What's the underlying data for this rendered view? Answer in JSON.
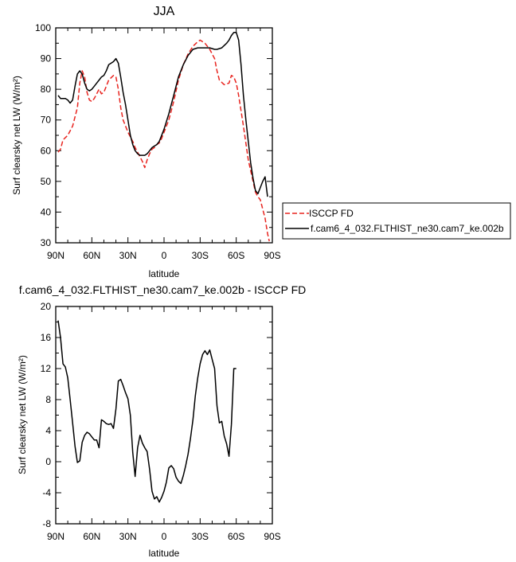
{
  "page": {
    "title": "JJA"
  },
  "chart_data": [
    {
      "type": "line",
      "title": "JJA",
      "xlabel": "latitude",
      "ylabel": "Surf clearsky net LW (W/m²)",
      "xlim": [
        90,
        -90
      ],
      "ylim": [
        30,
        100
      ],
      "x_ticks": [
        90,
        60,
        30,
        0,
        -30,
        -60,
        -90
      ],
      "x_tick_labels": [
        "90N",
        "60N",
        "30N",
        "0",
        "30S",
        "60S",
        "90S"
      ],
      "y_ticks": [
        30,
        40,
        50,
        60,
        70,
        80,
        90,
        100
      ],
      "y_tick_labels": [
        "30",
        "40",
        "50",
        "60",
        "70",
        "80",
        "90",
        "100"
      ],
      "legend_position": "right",
      "series": [
        {
          "name": "ISCCP FD",
          "color": "#e8241f",
          "dash": "dashed",
          "points": [
            [
              88,
              59.5
            ],
            [
              86,
              60.5
            ],
            [
              84,
              63.5
            ],
            [
              80,
              65
            ],
            [
              76,
              68
            ],
            [
              72,
              74
            ],
            [
              70,
              82
            ],
            [
              68,
              86
            ],
            [
              66,
              84
            ],
            [
              64,
              79
            ],
            [
              62,
              76.5
            ],
            [
              60,
              76
            ],
            [
              58,
              77
            ],
            [
              56,
              78.5
            ],
            [
              54,
              80
            ],
            [
              52,
              78.5
            ],
            [
              50,
              79
            ],
            [
              48,
              81
            ],
            [
              46,
              83
            ],
            [
              42,
              84.5
            ],
            [
              40,
              84
            ],
            [
              38,
              80
            ],
            [
              36,
              74
            ],
            [
              34,
              70
            ],
            [
              30,
              66
            ],
            [
              26,
              63
            ],
            [
              24,
              61
            ],
            [
              20,
              58
            ],
            [
              18,
              56.5
            ],
            [
              16,
              54.5
            ],
            [
              14,
              57
            ],
            [
              12,
              59
            ],
            [
              10,
              60.5
            ],
            [
              8,
              61
            ],
            [
              6,
              62
            ],
            [
              4,
              62.5
            ],
            [
              2,
              64
            ],
            [
              0,
              66
            ],
            [
              -2,
              68
            ],
            [
              -4,
              70
            ],
            [
              -8,
              76
            ],
            [
              -12,
              83
            ],
            [
              -16,
              88
            ],
            [
              -20,
              91.5
            ],
            [
              -24,
              94
            ],
            [
              -28,
              95.5
            ],
            [
              -30,
              96
            ],
            [
              -34,
              95
            ],
            [
              -38,
              93
            ],
            [
              -42,
              90
            ],
            [
              -44,
              86
            ],
            [
              -46,
              83
            ],
            [
              -50,
              81.5
            ],
            [
              -54,
              82
            ],
            [
              -56,
              84.5
            ],
            [
              -58,
              84
            ],
            [
              -60,
              82
            ],
            [
              -62,
              78
            ],
            [
              -66,
              68
            ],
            [
              -70,
              57
            ],
            [
              -74,
              50
            ],
            [
              -76,
              46.5
            ],
            [
              -78,
              45
            ],
            [
              -80,
              44
            ],
            [
              -82,
              41
            ],
            [
              -84,
              38
            ],
            [
              -86,
              33
            ],
            [
              -87.5,
              30.5
            ]
          ]
        },
        {
          "name": "f.cam6_4_032.FLTHIST_ne30.cam7_ke.002b",
          "color": "#000000",
          "dash": "solid",
          "points": [
            [
              88,
              78
            ],
            [
              86,
              77
            ],
            [
              84,
              77
            ],
            [
              82,
              77
            ],
            [
              80,
              76.5
            ],
            [
              78,
              75.5
            ],
            [
              76,
              76.5
            ],
            [
              74,
              81
            ],
            [
              72,
              85
            ],
            [
              70,
              86
            ],
            [
              68,
              85
            ],
            [
              66,
              82
            ],
            [
              64,
              80
            ],
            [
              62,
              79.5
            ],
            [
              60,
              80
            ],
            [
              58,
              81
            ],
            [
              56,
              82
            ],
            [
              54,
              83
            ],
            [
              52,
              84
            ],
            [
              50,
              84.5
            ],
            [
              48,
              86
            ],
            [
              46,
              88
            ],
            [
              44,
              88.5
            ],
            [
              42,
              89
            ],
            [
              40,
              90
            ],
            [
              38,
              88.5
            ],
            [
              36,
              84
            ],
            [
              34,
              79
            ],
            [
              32,
              75
            ],
            [
              30,
              70
            ],
            [
              28,
              65
            ],
            [
              26,
              62
            ],
            [
              24,
              60
            ],
            [
              22,
              59
            ],
            [
              20,
              58.5
            ],
            [
              18,
              58.5
            ],
            [
              16,
              58.5
            ],
            [
              14,
              59
            ],
            [
              12,
              60
            ],
            [
              10,
              61
            ],
            [
              8,
              61.5
            ],
            [
              6,
              62
            ],
            [
              4,
              63
            ],
            [
              0,
              67
            ],
            [
              -4,
              72
            ],
            [
              -8,
              78
            ],
            [
              -12,
              84
            ],
            [
              -16,
              88
            ],
            [
              -20,
              91
            ],
            [
              -24,
              93
            ],
            [
              -28,
              93.5
            ],
            [
              -34,
              93.5
            ],
            [
              -38,
              93.5
            ],
            [
              -42,
              93
            ],
            [
              -44,
              93
            ],
            [
              -48,
              93.5
            ],
            [
              -52,
              95
            ],
            [
              -54,
              96
            ],
            [
              -56,
              97.5
            ],
            [
              -58,
              98.5
            ],
            [
              -60,
              98.5
            ],
            [
              -62,
              96
            ],
            [
              -64,
              88
            ],
            [
              -66,
              78
            ],
            [
              -68,
              70
            ],
            [
              -70,
              63
            ],
            [
              -72,
              56
            ],
            [
              -74,
              51
            ],
            [
              -76,
              47
            ],
            [
              -78,
              46
            ],
            [
              -80,
              48
            ],
            [
              -82,
              50
            ],
            [
              -84,
              51.5
            ],
            [
              -86,
              45
            ]
          ]
        }
      ]
    },
    {
      "type": "line",
      "title": "f.cam6_4_032.FLTHIST_ne30.cam7_ke.002b - ISCCP FD",
      "xlabel": "latitude",
      "ylabel": "Surf clearsky net LW (W/m²)",
      "xlim": [
        90,
        -90
      ],
      "ylim": [
        -8,
        20
      ],
      "x_ticks": [
        90,
        60,
        30,
        0,
        -30,
        -60,
        -90
      ],
      "x_tick_labels": [
        "90N",
        "60N",
        "30N",
        "0",
        "30S",
        "60S",
        "90S"
      ],
      "y_ticks": [
        -8,
        -4,
        0,
        4,
        8,
        12,
        16,
        20
      ],
      "y_tick_labels": [
        "-8",
        "-4",
        "0",
        "4",
        "8",
        "12",
        "16",
        "20"
      ],
      "series": [
        {
          "color": "#000000",
          "dash": "solid",
          "points": [
            [
              88,
              18.2
            ],
            [
              86,
              16
            ],
            [
              84,
              12.6
            ],
            [
              82,
              12.2
            ],
            [
              80,
              10.8
            ],
            [
              78,
              8
            ],
            [
              76,
              5
            ],
            [
              74,
              2
            ],
            [
              72,
              -0.1
            ],
            [
              70,
              0.1
            ],
            [
              68,
              2.5
            ],
            [
              66,
              3.4
            ],
            [
              64,
              3.8
            ],
            [
              62,
              3.6
            ],
            [
              60,
              3.2
            ],
            [
              58,
              2.8
            ],
            [
              56,
              2.8
            ],
            [
              54,
              1.8
            ],
            [
              52,
              5.4
            ],
            [
              50,
              5.2
            ],
            [
              48,
              4.9
            ],
            [
              46,
              4.8
            ],
            [
              44,
              4.9
            ],
            [
              42,
              4.3
            ],
            [
              40,
              6.8
            ],
            [
              38,
              10.4
            ],
            [
              36,
              10.6
            ],
            [
              34,
              9.8
            ],
            [
              32,
              8.9
            ],
            [
              30,
              8.1
            ],
            [
              28,
              6
            ],
            [
              26,
              1.2
            ],
            [
              24,
              -1.9
            ],
            [
              22,
              1.8
            ],
            [
              20,
              3.4
            ],
            [
              18,
              2.4
            ],
            [
              16,
              1.8
            ],
            [
              14,
              1.3
            ],
            [
              12,
              -1
            ],
            [
              10,
              -3.8
            ],
            [
              8,
              -4.8
            ],
            [
              6,
              -4.5
            ],
            [
              4,
              -5.2
            ],
            [
              2,
              -4.6
            ],
            [
              0,
              -3.8
            ],
            [
              -2,
              -2.6
            ],
            [
              -4,
              -0.8
            ],
            [
              -6,
              -0.5
            ],
            [
              -8,
              -0.9
            ],
            [
              -10,
              -2
            ],
            [
              -12,
              -2.5
            ],
            [
              -14,
              -2.8
            ],
            [
              -16,
              -1.8
            ],
            [
              -18,
              -0.5
            ],
            [
              -20,
              1
            ],
            [
              -22,
              3
            ],
            [
              -24,
              5.4
            ],
            [
              -26,
              8.5
            ],
            [
              -28,
              10.8
            ],
            [
              -30,
              12.6
            ],
            [
              -32,
              13.8
            ],
            [
              -34,
              14.3
            ],
            [
              -36,
              13.8
            ],
            [
              -38,
              14.4
            ],
            [
              -40,
              13.2
            ],
            [
              -42,
              12
            ],
            [
              -44,
              7.2
            ],
            [
              -46,
              5
            ],
            [
              -48,
              5.2
            ],
            [
              -50,
              3.3
            ],
            [
              -52,
              2.3
            ],
            [
              -54,
              0.7
            ],
            [
              -56,
              4.8
            ],
            [
              -58,
              12
            ],
            [
              -60,
              12
            ]
          ]
        }
      ]
    }
  ]
}
